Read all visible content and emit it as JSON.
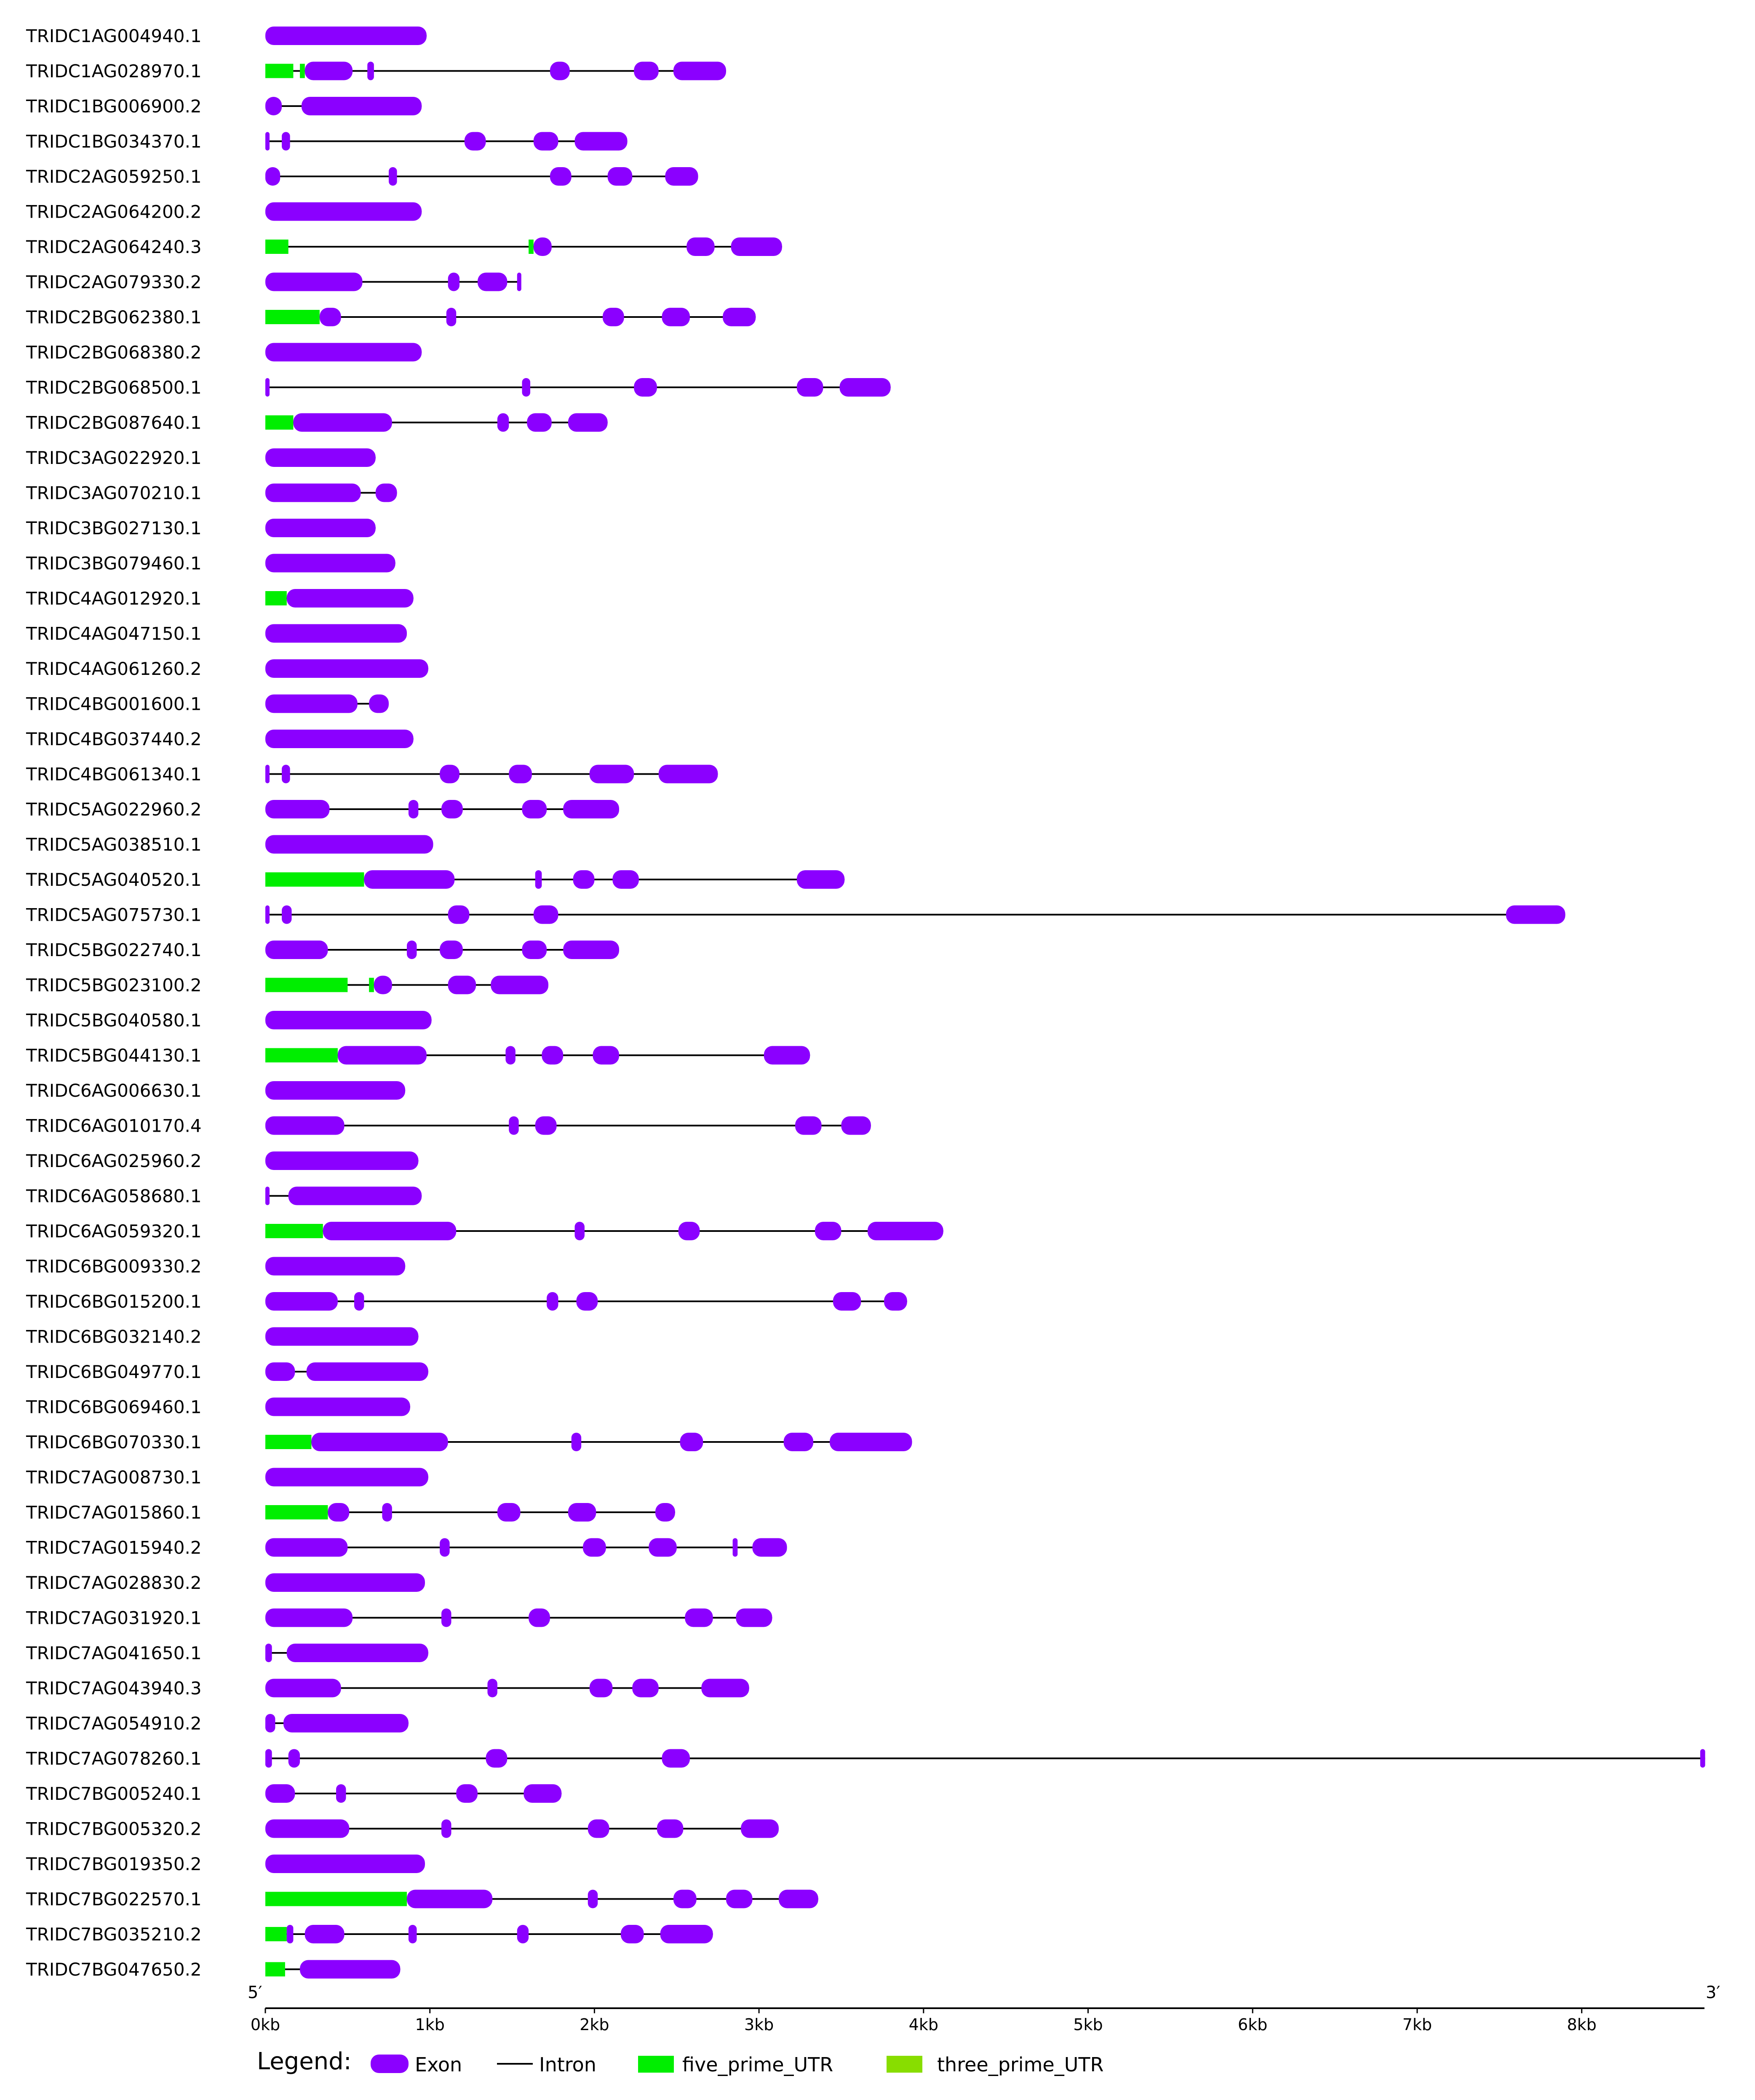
{
  "colors": {
    "exon": "#8B00FF",
    "intron": "#000000",
    "five_prime_utr": "#00EE00",
    "three_prime_utr": "#88DD00",
    "text": "#000000"
  },
  "axis": {
    "start_label": "5′",
    "end_label": "3′",
    "ticks": [
      "0kb",
      "1kb",
      "2kb",
      "3kb",
      "4kb",
      "5kb",
      "6kb",
      "7kb",
      "8kb"
    ]
  },
  "legend": {
    "title": "Legend:",
    "items": [
      {
        "label": "Exon",
        "kind": "exon"
      },
      {
        "label": "Intron",
        "kind": "intron"
      },
      {
        "label": "five_prime_UTR",
        "kind": "five_prime_utr"
      },
      {
        "label": "three_prime_UTR",
        "kind": "three_prime_utr"
      }
    ]
  },
  "chart_data": {
    "type": "gene-structure",
    "x_unit": "kb",
    "xlim": [
      0,
      8.75
    ],
    "genes": [
      {
        "id": "TRIDC1AG004940.1",
        "length": 0.98,
        "utr5": [],
        "exons": [
          [
            0,
            0.98
          ]
        ]
      },
      {
        "id": "TRIDC1AG028970.1",
        "length": 2.8,
        "utr5": [
          [
            0,
            0.17
          ],
          [
            0.21,
            0.24
          ]
        ],
        "exons": [
          [
            0.24,
            0.53
          ],
          [
            0.62,
            0.66
          ],
          [
            1.73,
            1.85
          ],
          [
            2.24,
            2.39
          ],
          [
            2.48,
            2.8
          ]
        ]
      },
      {
        "id": "TRIDC1BG006900.2",
        "length": 0.95,
        "utr5": [],
        "exons": [
          [
            0,
            0.1
          ],
          [
            0.22,
            0.95
          ]
        ]
      },
      {
        "id": "TRIDC1BG034370.1",
        "length": 2.2,
        "utr5": [],
        "exons": [
          [
            0,
            0.02
          ],
          [
            0.1,
            0.15
          ],
          [
            1.21,
            1.34
          ],
          [
            1.63,
            1.78
          ],
          [
            1.88,
            2.2
          ]
        ]
      },
      {
        "id": "TRIDC2AG059250.1",
        "length": 2.63,
        "utr5": [],
        "exons": [
          [
            0,
            0.09
          ],
          [
            0.75,
            0.8
          ],
          [
            1.73,
            1.86
          ],
          [
            2.08,
            2.23
          ],
          [
            2.43,
            2.63
          ]
        ]
      },
      {
        "id": "TRIDC2AG064200.2",
        "length": 0.95,
        "utr5": [],
        "exons": [
          [
            0,
            0.95
          ]
        ]
      },
      {
        "id": "TRIDC2AG064240.3",
        "length": 3.14,
        "utr5": [
          [
            0,
            0.14
          ],
          [
            1.6,
            1.63
          ]
        ],
        "exons": [
          [
            1.63,
            1.74
          ],
          [
            2.56,
            2.73
          ],
          [
            2.83,
            3.14
          ]
        ]
      },
      {
        "id": "TRIDC2AG079330.2",
        "length": 1.55,
        "utr5": [],
        "exons": [
          [
            0,
            0.59
          ],
          [
            1.11,
            1.18
          ],
          [
            1.29,
            1.47
          ],
          [
            1.53,
            1.55
          ]
        ]
      },
      {
        "id": "TRIDC2BG062380.1",
        "length": 2.98,
        "utr5": [
          [
            0,
            0.33
          ]
        ],
        "exons": [
          [
            0.33,
            0.46
          ],
          [
            1.1,
            1.16
          ],
          [
            2.05,
            2.18
          ],
          [
            2.41,
            2.58
          ],
          [
            2.78,
            2.98
          ]
        ]
      },
      {
        "id": "TRIDC2BG068380.2",
        "length": 0.95,
        "utr5": [],
        "exons": [
          [
            0,
            0.95
          ]
        ]
      },
      {
        "id": "TRIDC2BG068500.1",
        "length": 3.8,
        "utr5": [],
        "exons": [
          [
            0,
            0.02
          ],
          [
            1.56,
            1.61
          ],
          [
            2.24,
            2.38
          ],
          [
            3.23,
            3.39
          ],
          [
            3.49,
            3.8
          ]
        ]
      },
      {
        "id": "TRIDC2BG087640.1",
        "length": 2.08,
        "utr5": [
          [
            0,
            0.17
          ]
        ],
        "exons": [
          [
            0.17,
            0.77
          ],
          [
            1.41,
            1.48
          ],
          [
            1.59,
            1.74
          ],
          [
            1.84,
            2.08
          ]
        ]
      },
      {
        "id": "TRIDC3AG022920.1",
        "length": 0.67,
        "utr5": [],
        "exons": [
          [
            0,
            0.67
          ]
        ]
      },
      {
        "id": "TRIDC3AG070210.1",
        "length": 0.8,
        "utr5": [],
        "exons": [
          [
            0,
            0.58
          ],
          [
            0.67,
            0.8
          ]
        ]
      },
      {
        "id": "TRIDC3BG027130.1",
        "length": 0.67,
        "utr5": [],
        "exons": [
          [
            0,
            0.67
          ]
        ]
      },
      {
        "id": "TRIDC3BG079460.1",
        "length": 0.79,
        "utr5": [],
        "exons": [
          [
            0,
            0.79
          ]
        ]
      },
      {
        "id": "TRIDC4AG012920.1",
        "length": 0.9,
        "utr5": [
          [
            0,
            0.13
          ]
        ],
        "exons": [
          [
            0.13,
            0.9
          ]
        ]
      },
      {
        "id": "TRIDC4AG047150.1",
        "length": 0.86,
        "utr5": [],
        "exons": [
          [
            0,
            0.86
          ]
        ]
      },
      {
        "id": "TRIDC4AG061260.2",
        "length": 0.99,
        "utr5": [],
        "exons": [
          [
            0,
            0.99
          ]
        ]
      },
      {
        "id": "TRIDC4BG001600.1",
        "length": 0.75,
        "utr5": [],
        "exons": [
          [
            0,
            0.56
          ],
          [
            0.63,
            0.75
          ]
        ]
      },
      {
        "id": "TRIDC4BG037440.2",
        "length": 0.9,
        "utr5": [],
        "exons": [
          [
            0,
            0.9
          ]
        ]
      },
      {
        "id": "TRIDC4BG061340.1",
        "length": 2.75,
        "utr5": [],
        "exons": [
          [
            0,
            0.02
          ],
          [
            0.1,
            0.15
          ],
          [
            1.06,
            1.18
          ],
          [
            1.48,
            1.62
          ],
          [
            1.97,
            2.24
          ],
          [
            2.39,
            2.75
          ]
        ]
      },
      {
        "id": "TRIDC5AG022960.2",
        "length": 2.15,
        "utr5": [],
        "exons": [
          [
            0,
            0.39
          ],
          [
            0.87,
            0.93
          ],
          [
            1.07,
            1.2
          ],
          [
            1.56,
            1.71
          ],
          [
            1.81,
            2.15
          ]
        ]
      },
      {
        "id": "TRIDC5AG038510.1",
        "length": 1.02,
        "utr5": [],
        "exons": [
          [
            0,
            1.02
          ]
        ]
      },
      {
        "id": "TRIDC5AG040520.1",
        "length": 3.52,
        "utr5": [
          [
            0,
            0.6
          ]
        ],
        "exons": [
          [
            0.6,
            1.15
          ],
          [
            1.64,
            1.68
          ],
          [
            1.87,
            2.0
          ],
          [
            2.11,
            2.27
          ],
          [
            3.23,
            3.52
          ]
        ]
      },
      {
        "id": "TRIDC5AG075730.1",
        "length": 7.9,
        "utr5": [],
        "exons": [
          [
            0,
            0.02
          ],
          [
            0.1,
            0.16
          ],
          [
            1.11,
            1.24
          ],
          [
            1.63,
            1.78
          ],
          [
            7.54,
            7.9
          ]
        ]
      },
      {
        "id": "TRIDC5BG022740.1",
        "length": 2.15,
        "utr5": [],
        "exons": [
          [
            0,
            0.38
          ],
          [
            0.86,
            0.92
          ],
          [
            1.06,
            1.2
          ],
          [
            1.56,
            1.71
          ],
          [
            1.81,
            2.15
          ]
        ]
      },
      {
        "id": "TRIDC5BG023100.2",
        "length": 1.72,
        "utr5": [
          [
            0,
            0.5
          ],
          [
            0.63,
            0.66
          ]
        ],
        "exons": [
          [
            0.66,
            0.77
          ],
          [
            1.11,
            1.28
          ],
          [
            1.37,
            1.72
          ]
        ]
      },
      {
        "id": "TRIDC5BG040580.1",
        "length": 1.01,
        "utr5": [],
        "exons": [
          [
            0,
            1.01
          ]
        ]
      },
      {
        "id": "TRIDC5BG044130.1",
        "length": 3.31,
        "utr5": [
          [
            0,
            0.44
          ]
        ],
        "exons": [
          [
            0.44,
            0.98
          ],
          [
            1.46,
            1.52
          ],
          [
            1.68,
            1.81
          ],
          [
            1.99,
            2.15
          ],
          [
            3.03,
            3.31
          ]
        ]
      },
      {
        "id": "TRIDC6AG006630.1",
        "length": 0.85,
        "utr5": [],
        "exons": [
          [
            0,
            0.85
          ]
        ]
      },
      {
        "id": "TRIDC6AG010170.4",
        "length": 3.68,
        "utr5": [],
        "exons": [
          [
            0,
            0.48
          ],
          [
            1.48,
            1.54
          ],
          [
            1.64,
            1.77
          ],
          [
            3.22,
            3.38
          ],
          [
            3.5,
            3.68
          ]
        ]
      },
      {
        "id": "TRIDC6AG025960.2",
        "length": 0.93,
        "utr5": [],
        "exons": [
          [
            0,
            0.93
          ]
        ]
      },
      {
        "id": "TRIDC6AG058680.1",
        "length": 0.95,
        "utr5": [],
        "exons": [
          [
            0,
            0.02
          ],
          [
            0.14,
            0.95
          ]
        ]
      },
      {
        "id": "TRIDC6AG059320.1",
        "length": 4.12,
        "utr5": [
          [
            0,
            0.35
          ]
        ],
        "exons": [
          [
            0.35,
            1.16
          ],
          [
            1.88,
            1.94
          ],
          [
            2.51,
            2.64
          ],
          [
            3.34,
            3.5
          ],
          [
            3.66,
            4.12
          ]
        ]
      },
      {
        "id": "TRIDC6BG009330.2",
        "length": 0.85,
        "utr5": [],
        "exons": [
          [
            0,
            0.85
          ]
        ]
      },
      {
        "id": "TRIDC6BG015200.1",
        "length": 3.9,
        "utr5": [],
        "exons": [
          [
            0,
            0.44
          ],
          [
            0.54,
            0.6
          ],
          [
            1.71,
            1.78
          ],
          [
            1.89,
            2.02
          ],
          [
            3.45,
            3.62
          ],
          [
            3.76,
            3.9
          ]
        ]
      },
      {
        "id": "TRIDC6BG032140.2",
        "length": 0.93,
        "utr5": [],
        "exons": [
          [
            0,
            0.93
          ]
        ]
      },
      {
        "id": "TRIDC6BG049770.1",
        "length": 0.99,
        "utr5": [],
        "exons": [
          [
            0,
            0.18
          ],
          [
            0.25,
            0.99
          ]
        ]
      },
      {
        "id": "TRIDC6BG069460.1",
        "length": 0.88,
        "utr5": [],
        "exons": [
          [
            0,
            0.88
          ]
        ]
      },
      {
        "id": "TRIDC6BG070330.1",
        "length": 3.93,
        "utr5": [
          [
            0,
            0.28
          ]
        ],
        "exons": [
          [
            0.28,
            1.11
          ],
          [
            1.86,
            1.92
          ],
          [
            2.52,
            2.66
          ],
          [
            3.15,
            3.33
          ],
          [
            3.43,
            3.93
          ]
        ]
      },
      {
        "id": "TRIDC7AG008730.1",
        "length": 0.99,
        "utr5": [],
        "exons": [
          [
            0,
            0.99
          ]
        ]
      },
      {
        "id": "TRIDC7AG015860.1",
        "length": 2.49,
        "utr5": [
          [
            0,
            0.38
          ]
        ],
        "exons": [
          [
            0.38,
            0.51
          ],
          [
            0.71,
            0.77
          ],
          [
            1.41,
            1.55
          ],
          [
            1.84,
            2.01
          ],
          [
            2.37,
            2.49
          ]
        ]
      },
      {
        "id": "TRIDC7AG015940.2",
        "length": 3.17,
        "utr5": [],
        "exons": [
          [
            0,
            0.5
          ],
          [
            1.06,
            1.12
          ],
          [
            1.93,
            2.07
          ],
          [
            2.33,
            2.5
          ],
          [
            2.84,
            2.87
          ],
          [
            2.96,
            3.17
          ]
        ]
      },
      {
        "id": "TRIDC7AG028830.2",
        "length": 0.97,
        "utr5": [],
        "exons": [
          [
            0,
            0.97
          ]
        ]
      },
      {
        "id": "TRIDC7AG031920.1",
        "length": 3.08,
        "utr5": [],
        "exons": [
          [
            0,
            0.53
          ],
          [
            1.07,
            1.13
          ],
          [
            1.6,
            1.73
          ],
          [
            2.55,
            2.72
          ],
          [
            2.86,
            3.08
          ]
        ]
      },
      {
        "id": "TRIDC7AG041650.1",
        "length": 0.99,
        "utr5": [],
        "exons": [
          [
            0,
            0.04
          ],
          [
            0.13,
            0.99
          ]
        ]
      },
      {
        "id": "TRIDC7AG043940.3",
        "length": 2.94,
        "utr5": [],
        "exons": [
          [
            0,
            0.46
          ],
          [
            1.35,
            1.41
          ],
          [
            1.97,
            2.11
          ],
          [
            2.23,
            2.39
          ],
          [
            2.65,
            2.94
          ]
        ]
      },
      {
        "id": "TRIDC7AG054910.2",
        "length": 0.87,
        "utr5": [],
        "exons": [
          [
            0,
            0.06
          ],
          [
            0.11,
            0.87
          ]
        ]
      },
      {
        "id": "TRIDC7AG078260.1",
        "length": 8.75,
        "utr5": [],
        "exons": [
          [
            0,
            0.04
          ],
          [
            0.14,
            0.21
          ],
          [
            1.34,
            1.47
          ],
          [
            2.41,
            2.58
          ],
          [
            8.72,
            8.75
          ]
        ]
      },
      {
        "id": "TRIDC7BG005240.1",
        "length": 1.8,
        "utr5": [],
        "exons": [
          [
            0,
            0.18
          ],
          [
            0.43,
            0.49
          ],
          [
            1.16,
            1.29
          ],
          [
            1.57,
            1.8
          ]
        ]
      },
      {
        "id": "TRIDC7BG005320.2",
        "length": 3.12,
        "utr5": [],
        "exons": [
          [
            0,
            0.51
          ],
          [
            1.07,
            1.13
          ],
          [
            1.96,
            2.09
          ],
          [
            2.38,
            2.54
          ],
          [
            2.89,
            3.12
          ]
        ]
      },
      {
        "id": "TRIDC7BG019350.2",
        "length": 0.97,
        "utr5": [],
        "exons": [
          [
            0,
            0.97
          ]
        ]
      },
      {
        "id": "TRIDC7BG022570.1",
        "length": 3.36,
        "utr5": [
          [
            0,
            0.86
          ]
        ],
        "exons": [
          [
            0.86,
            1.38
          ],
          [
            1.96,
            2.02
          ],
          [
            2.48,
            2.62
          ],
          [
            2.8,
            2.96
          ],
          [
            3.12,
            3.36
          ]
        ]
      },
      {
        "id": "TRIDC7BG035210.2",
        "length": 2.72,
        "utr5": [
          [
            0,
            0.13
          ]
        ],
        "exons": [
          [
            0.13,
            0.17
          ],
          [
            0.24,
            0.48
          ],
          [
            0.87,
            0.92
          ],
          [
            1.53,
            1.6
          ],
          [
            2.16,
            2.3
          ],
          [
            2.4,
            2.72
          ]
        ]
      },
      {
        "id": "TRIDC7BG047650.2",
        "length": 0.82,
        "utr5": [
          [
            0,
            0.12
          ]
        ],
        "exons": [
          [
            0.21,
            0.82
          ]
        ]
      }
    ]
  }
}
